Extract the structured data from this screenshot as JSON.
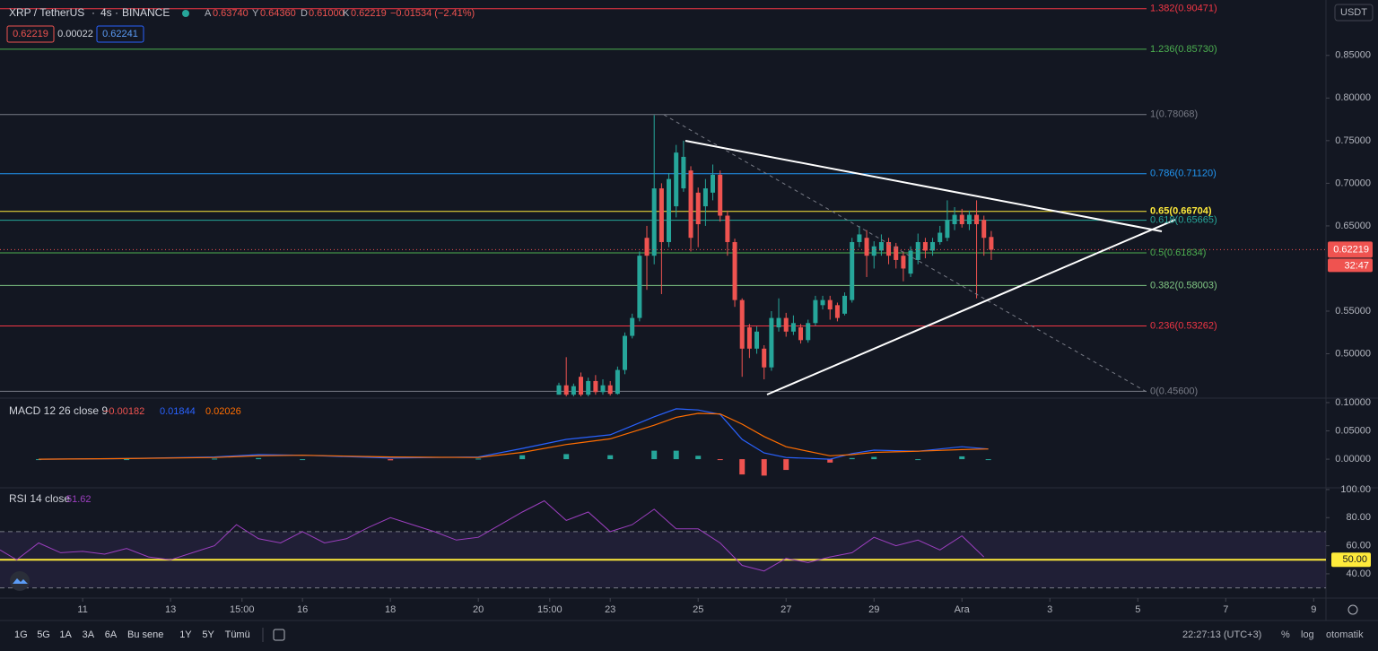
{
  "header": {
    "symbol": "XRP / TetherUS",
    "interval": "4s",
    "exchange": "BINANCE",
    "open_label": "A",
    "open": "0.63740",
    "high_label": "Y",
    "high": "0.64360",
    "low_label": "D",
    "low": "0.61000",
    "close_label": "K",
    "close": "0.62219",
    "change": "−0.01534 (−2.41%)",
    "bid": "0.62219",
    "spread": "0.00022",
    "ask": "0.62241",
    "currency": "USDT"
  },
  "time_axis": {
    "xlim": [
      9.12,
      39.28
    ],
    "xticks": [
      11,
      13,
      {
        "value": 14.625,
        "label": "15:00"
      },
      16,
      18,
      20,
      {
        "value": 21.625,
        "label": "15:00"
      },
      23,
      25,
      27,
      29,
      {
        "value": 31,
        "label": "Ara"
      },
      {
        "value": 33,
        "label": "3"
      },
      {
        "value": 35,
        "label": "5"
      },
      {
        "value": 37,
        "label": "7"
      },
      {
        "value": 39,
        "label": "9"
      }
    ]
  },
  "chart_data": [
    {
      "type": "candlestick",
      "up_color": "#26a69a",
      "down_color": "#ef5350",
      "ylim": [
        0.449,
        0.915
      ],
      "yticks": [
        {
          "value": 0.5,
          "label": "0.50000"
        },
        {
          "value": 0.55,
          "label": "0.55000"
        },
        {
          "value": 0.65,
          "label": "0.65000"
        },
        {
          "value": 0.7,
          "label": "0.70000"
        },
        {
          "value": 0.75,
          "label": "0.75000"
        },
        {
          "value": 0.8,
          "label": "0.80000"
        },
        {
          "value": 0.85,
          "label": "0.85000"
        }
      ],
      "x": [
        21.833,
        22,
        22.167,
        22.333,
        22.5,
        22.667,
        22.833,
        23,
        23.167,
        23.333,
        23.5,
        23.667,
        23.833,
        24,
        24.167,
        24.333,
        24.5,
        24.667,
        24.833,
        25,
        25.167,
        25.333,
        25.5,
        25.667,
        25.833,
        26,
        26.167,
        26.333,
        26.5,
        26.667,
        26.833,
        27,
        27.167,
        27.333,
        27.5,
        27.667,
        27.833,
        28,
        28.167,
        28.333,
        28.5,
        28.667,
        28.833,
        29,
        29.167,
        29.333,
        29.5,
        29.667,
        29.833,
        30,
        30.167,
        30.333,
        30.5,
        30.667,
        30.833,
        31,
        31.167,
        31.333,
        31.5,
        31.667
      ],
      "open": [
        0.452,
        0.463,
        0.452,
        0.473,
        0.452,
        0.468,
        0.455,
        0.463,
        0.453,
        0.481,
        0.521,
        0.542,
        0.636,
        0.615,
        0.694,
        0.631,
        0.673,
        0.694,
        0.715,
        0.689,
        0.673,
        0.689,
        0.71,
        0.662,
        0.631,
        0.563,
        0.531,
        0.506,
        0.506,
        0.484,
        0.531,
        0.542,
        0.526,
        0.531,
        0.516,
        0.536,
        0.557,
        0.563,
        0.557,
        0.547,
        0.563,
        0.631,
        0.636,
        0.615,
        0.621,
        0.631,
        0.626,
        0.615,
        0.594,
        0.61,
        0.631,
        0.621,
        0.631,
        0.636,
        0.652,
        0.663,
        0.652,
        0.663,
        0.657,
        0.637
      ],
      "high": [
        0.466,
        0.496,
        0.465,
        0.478,
        0.472,
        0.475,
        0.47,
        0.468,
        0.485,
        0.525,
        0.547,
        0.62,
        0.65,
        0.78,
        0.7,
        0.712,
        0.745,
        0.75,
        0.72,
        0.695,
        0.705,
        0.722,
        0.715,
        0.668,
        0.635,
        0.565,
        0.535,
        0.532,
        0.51,
        0.55,
        0.565,
        0.548,
        0.545,
        0.535,
        0.54,
        0.568,
        0.568,
        0.568,
        0.56,
        0.572,
        0.636,
        0.65,
        0.645,
        0.632,
        0.64,
        0.636,
        0.63,
        0.62,
        0.626,
        0.641,
        0.636,
        0.636,
        0.65,
        0.68,
        0.672,
        0.67,
        0.668,
        0.68,
        0.662,
        0.644
      ],
      "low": [
        0.452,
        0.45,
        0.45,
        0.45,
        0.45,
        0.452,
        0.452,
        0.451,
        0.452,
        0.476,
        0.518,
        0.538,
        0.575,
        0.605,
        0.57,
        0.625,
        0.66,
        0.69,
        0.62,
        0.625,
        0.65,
        0.68,
        0.655,
        0.615,
        0.555,
        0.473,
        0.495,
        0.5,
        0.47,
        0.48,
        0.526,
        0.52,
        0.522,
        0.512,
        0.513,
        0.533,
        0.552,
        0.54,
        0.538,
        0.545,
        0.56,
        0.625,
        0.59,
        0.6,
        0.615,
        0.605,
        0.6,
        0.585,
        0.59,
        0.605,
        0.612,
        0.615,
        0.628,
        0.632,
        0.645,
        0.648,
        0.645,
        0.565,
        0.615,
        0.61
      ],
      "close": [
        0.463,
        0.452,
        0.462,
        0.452,
        0.468,
        0.455,
        0.463,
        0.453,
        0.481,
        0.521,
        0.542,
        0.615,
        0.615,
        0.694,
        0.631,
        0.705,
        0.736,
        0.731,
        0.636,
        0.652,
        0.694,
        0.71,
        0.662,
        0.631,
        0.563,
        0.506,
        0.506,
        0.526,
        0.484,
        0.542,
        0.542,
        0.526,
        0.536,
        0.516,
        0.536,
        0.563,
        0.563,
        0.552,
        0.542,
        0.568,
        0.631,
        0.64,
        0.615,
        0.626,
        0.631,
        0.615,
        0.61,
        0.6,
        0.621,
        0.631,
        0.621,
        0.631,
        0.642,
        0.657,
        0.663,
        0.652,
        0.663,
        0.652,
        0.636,
        0.622
      ],
      "fib_levels": [
        {
          "label": "1.382(0.90471)",
          "value": 0.90471,
          "color": "#f23645"
        },
        {
          "label": "1.236(0.85730)",
          "value": 0.8573,
          "color": "#4caf50"
        },
        {
          "label": "1(0.78068)",
          "value": 0.78068,
          "color": "#787b86"
        },
        {
          "label": "0.786(0.71120)",
          "value": 0.7112,
          "color": "#2196f3"
        },
        {
          "label": "0.65(0.66704)",
          "value": 0.66704,
          "color": "#ffeb3b"
        },
        {
          "label": "0.618(0.65665)",
          "value": 0.65665,
          "color": "#26a69a"
        },
        {
          "label": "0.5(0.61834)",
          "value": 0.61834,
          "color": "#4caf50"
        },
        {
          "label": "0.382(0.58003)",
          "value": 0.58003,
          "color": "#81c784"
        },
        {
          "label": "0.236(0.53262)",
          "value": 0.53262,
          "color": "#f23645"
        },
        {
          "label": "0(0.45600)",
          "value": 0.456,
          "color": "#787b86"
        }
      ],
      "last_price": {
        "value": 0.62219,
        "label": "0.62219"
      },
      "countdown": "32:47"
    },
    {
      "type": "macd",
      "title": "MACD 12 26 close 9",
      "legend_values": [
        "−0.00182",
        "0.01844",
        "0.02026"
      ],
      "ylim": [
        -0.049,
        0.1063
      ],
      "yticks": [
        {
          "value": 0,
          "label": "0.00000"
        },
        {
          "value": 0.05,
          "label": "0.05000"
        },
        {
          "value": 0.1,
          "label": "0.10000"
        }
      ],
      "x": [
        10,
        12,
        14,
        15,
        16,
        18,
        20,
        21,
        22,
        23,
        24,
        24.5,
        25,
        25.5,
        26,
        26.5,
        27,
        28,
        28.5,
        29,
        30,
        31,
        31.6
      ],
      "series": [
        {
          "name": "Histogram",
          "color": "#26a69a",
          "negative_color": "#ef5350",
          "values": [
            0,
            0,
            0.001,
            0.002,
            0,
            -0.002,
            0.001,
            0.007,
            0.009,
            0.007,
            0.015,
            0.015,
            0.006,
            -0.001,
            -0.027,
            -0.029,
            -0.019,
            -0.006,
            0.002,
            0.004,
            0,
            0.005,
            0
          ]
        },
        {
          "name": "MACD",
          "color": "#2962ff",
          "values": [
            0,
            0.001,
            0.004,
            0.008,
            0.007,
            0.002,
            0.004,
            0.019,
            0.035,
            0.043,
            0.075,
            0.089,
            0.087,
            0.079,
            0.035,
            0.011,
            0.003,
            0,
            0.01,
            0.016,
            0.014,
            0.022,
            0.018
          ]
        },
        {
          "name": "Signal",
          "color": "#ff6d00",
          "values": [
            0,
            0.001,
            0.003,
            0.006,
            0.007,
            0.004,
            0.003,
            0.012,
            0.026,
            0.036,
            0.06,
            0.074,
            0.081,
            0.08,
            0.062,
            0.04,
            0.022,
            0.006,
            0.008,
            0.012,
            0.014,
            0.017,
            0.018
          ]
        }
      ]
    },
    {
      "type": "rsi",
      "title": "RSI 14 close",
      "legend_value": "51.62",
      "color": "#9c3fbf",
      "ylim": [
        24,
        100.6
      ],
      "yticks": [
        {
          "value": 40,
          "label": "40.00"
        },
        {
          "value": 60,
          "label": "60.00"
        },
        {
          "value": 80,
          "label": "80.00"
        },
        {
          "value": 100,
          "label": "100.00"
        }
      ],
      "bands": [
        30,
        70
      ],
      "midline": {
        "value": 50,
        "label": "50.00"
      },
      "x": [
        9.12,
        9.5,
        10,
        10.5,
        11,
        11.5,
        12,
        12.5,
        13,
        13.5,
        14,
        14.5,
        15,
        15.5,
        16,
        16.5,
        17,
        17.5,
        18,
        18.5,
        19,
        19.5,
        20,
        20.5,
        21,
        21.5,
        22,
        22.5,
        23,
        23.5,
        24,
        24.5,
        25,
        25.5,
        26,
        26.5,
        27,
        27.5,
        28,
        28.5,
        29,
        29.5,
        30,
        30.5,
        31,
        31.5
      ],
      "values": [
        57,
        50,
        62,
        55,
        56,
        54,
        58,
        52,
        50,
        55,
        60,
        75,
        65,
        62,
        70,
        62,
        65,
        73,
        80,
        75,
        70,
        64,
        66,
        75,
        84,
        92,
        78,
        84,
        70,
        75,
        86,
        72,
        72,
        62,
        46,
        42,
        51,
        48,
        52,
        55,
        66,
        60,
        64,
        57,
        67,
        52
      ]
    }
  ],
  "toolbar": {
    "ranges": [
      "1G",
      "5G",
      "1A",
      "3A",
      "6A",
      "Bu sene",
      "1Y",
      "5Y",
      "Tümü"
    ],
    "clock": "22:27:13 (UTC+3)",
    "percent": "%",
    "log": "log",
    "auto": "otomatik"
  }
}
